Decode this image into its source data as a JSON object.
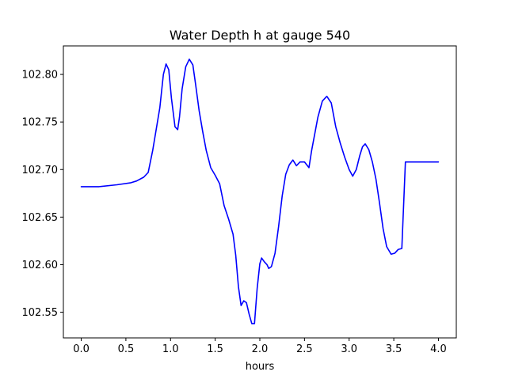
{
  "chart_data": {
    "type": "line",
    "title": "Water Depth h at gauge 540",
    "xlabel": "hours",
    "ylabel": "",
    "xlim": [
      -0.2,
      4.2
    ],
    "ylim": [
      102.523,
      102.83
    ],
    "xticks": [
      0.0,
      0.5,
      1.0,
      1.5,
      2.0,
      2.5,
      3.0,
      3.5,
      4.0
    ],
    "xtick_labels": [
      "0.0",
      "0.5",
      "1.0",
      "1.5",
      "2.0",
      "2.5",
      "3.0",
      "3.5",
      "4.0"
    ],
    "yticks": [
      102.55,
      102.6,
      102.65,
      102.7,
      102.75,
      102.8
    ],
    "ytick_labels": [
      "102.55",
      "102.60",
      "102.65",
      "102.70",
      "102.75",
      "102.80"
    ],
    "grid": false,
    "legend": "none",
    "series": [
      {
        "color": "#0000ff",
        "x": [
          0.0,
          0.2,
          0.4,
          0.55,
          0.62,
          0.7,
          0.75,
          0.8,
          0.88,
          0.92,
          0.95,
          0.98,
          1.01,
          1.05,
          1.08,
          1.1,
          1.13,
          1.17,
          1.21,
          1.25,
          1.28,
          1.32,
          1.36,
          1.4,
          1.45,
          1.5,
          1.55,
          1.6,
          1.65,
          1.7,
          1.73,
          1.76,
          1.79,
          1.82,
          1.85,
          1.88,
          1.91,
          1.94,
          1.97,
          2.0,
          2.02,
          2.05,
          2.08,
          2.1,
          2.13,
          2.17,
          2.21,
          2.25,
          2.29,
          2.33,
          2.37,
          2.41,
          2.45,
          2.5,
          2.55,
          2.58,
          2.62,
          2.65,
          2.7,
          2.75,
          2.8,
          2.85,
          2.9,
          2.95,
          3.0,
          3.04,
          3.08,
          3.12,
          3.15,
          3.18,
          3.22,
          3.26,
          3.3,
          3.34,
          3.38,
          3.42,
          3.47,
          3.51,
          3.55,
          3.59,
          3.63,
          3.67,
          3.71,
          3.75,
          3.8,
          3.85,
          3.9,
          3.94,
          3.97,
          4.0
        ],
        "y": [
          102.682,
          102.682,
          102.684,
          102.686,
          102.688,
          102.692,
          102.697,
          102.72,
          102.765,
          102.8,
          102.811,
          102.805,
          102.775,
          102.745,
          102.742,
          102.755,
          102.785,
          102.808,
          102.816,
          102.81,
          102.79,
          102.762,
          102.74,
          102.72,
          102.702,
          102.694,
          102.685,
          102.662,
          102.648,
          102.632,
          102.61,
          102.577,
          102.557,
          102.562,
          102.56,
          102.548,
          102.538,
          102.538,
          102.575,
          102.601,
          102.607,
          102.603,
          102.6,
          102.596,
          102.598,
          102.612,
          102.64,
          102.672,
          102.695,
          102.705,
          102.71,
          102.704,
          102.708,
          102.708,
          102.702,
          102.72,
          102.74,
          102.755,
          102.772,
          102.777,
          102.77,
          102.745,
          102.728,
          102.713,
          102.7,
          102.693,
          102.7,
          102.715,
          102.724,
          102.727,
          102.721,
          102.708,
          102.69,
          102.665,
          102.638,
          102.619,
          102.611,
          102.612,
          102.616,
          102.617,
          102.708,
          102.708,
          102.708,
          102.708,
          102.708,
          102.708,
          102.708,
          102.708,
          102.708,
          102.708
        ]
      }
    ]
  }
}
